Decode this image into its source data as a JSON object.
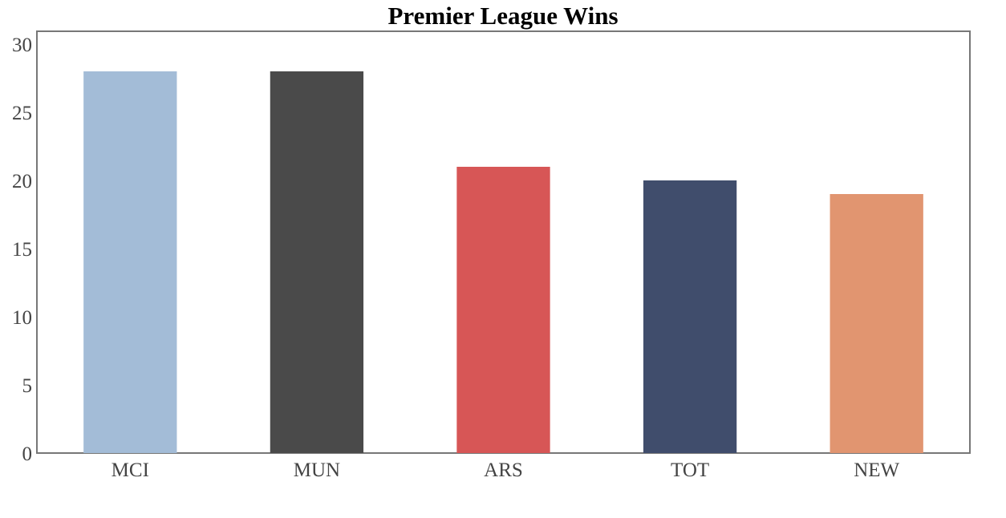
{
  "chart_data": {
    "type": "bar",
    "title": "Premier League Wins",
    "xlabel": "",
    "ylabel": "",
    "categories": [
      "MCI",
      "MUN",
      "ARS",
      "TOT",
      "NEW"
    ],
    "values": [
      28,
      28,
      21,
      20,
      19
    ],
    "colors": [
      "#a3bcd7",
      "#4a4a4a",
      "#d75656",
      "#404d6c",
      "#e19570"
    ],
    "ylim": [
      0,
      30
    ],
    "yticks": [
      0,
      5,
      10,
      15,
      20,
      25,
      30
    ],
    "grid": false,
    "legend": "none"
  }
}
